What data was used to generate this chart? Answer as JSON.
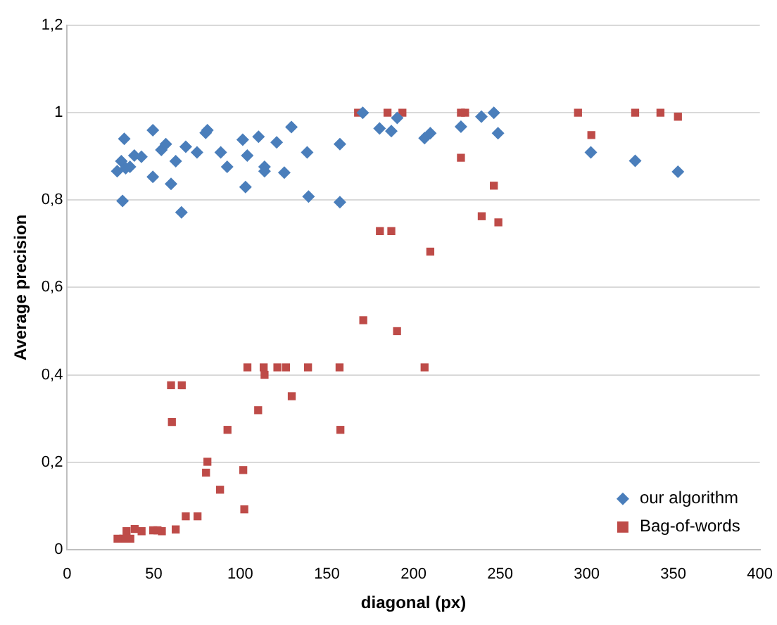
{
  "chart_data": {
    "type": "scatter",
    "xlabel": "diagonal (px)",
    "ylabel": "Average precision",
    "xlim": [
      0,
      400
    ],
    "xticks": [
      0,
      50,
      100,
      150,
      200,
      250,
      300,
      350,
      400
    ],
    "ylim": [
      0,
      1.2
    ],
    "yticks": [
      {
        "value": 0,
        "label": "0"
      },
      {
        "value": 0.2,
        "label": "0,2"
      },
      {
        "value": 0.4,
        "label": "0,4"
      },
      {
        "value": 0.6,
        "label": "0,6"
      },
      {
        "value": 0.8,
        "label": "0,8"
      },
      {
        "value": 1,
        "label": "1"
      },
      {
        "value": 1.2,
        "label": "1,2"
      }
    ],
    "grid": "y",
    "legend": "bottom right",
    "series": [
      {
        "name": "our algorithm",
        "color": "#4a7ebb",
        "marker": "diamond",
        "x": [
          28.9,
          31.3,
          33,
          32,
          33.8,
          36.3,
          38.8,
          42.9,
          49.5,
          49.5,
          54.4,
          57,
          60,
          62.7,
          66,
          68.5,
          75,
          80,
          81,
          88.7,
          92.4,
          101.4,
          103,
          104,
          110.5,
          114,
          114,
          121,
          125.4,
          129.5,
          138.6,
          139.4,
          157.5,
          157.5,
          170.7,
          180.4,
          187.2,
          190.6,
          206.4,
          209.7,
          227.4,
          239.2,
          246.4,
          248.8,
          302.4,
          328,
          352.7
        ],
        "values": [
          0.866,
          0.889,
          0.94,
          0.798,
          0.873,
          0.876,
          0.902,
          0.899,
          0.96,
          0.853,
          0.915,
          0.928,
          0.837,
          0.889,
          0.772,
          0.922,
          0.909,
          0.954,
          0.96,
          0.909,
          0.876,
          0.938,
          0.83,
          0.902,
          0.945,
          0.876,
          0.866,
          0.932,
          0.863,
          0.967,
          0.909,
          0.808,
          0.928,
          0.795,
          1.0,
          0.964,
          0.958,
          0.988,
          0.942,
          0.953,
          0.968,
          0.991,
          1.0,
          0.953,
          0.909,
          0.89,
          0.865
        ]
      },
      {
        "name": "Bag-of-words",
        "color": "#be4b48",
        "marker": "square",
        "x": [
          168,
          185,
          193.6,
          227.4,
          229.8,
          295,
          328,
          342.6,
          352.7,
          302.7,
          227.4,
          246.4,
          239.4,
          249,
          180.6,
          187.2,
          209.7,
          171,
          190.5,
          206.4,
          104.1,
          113.5,
          114,
          121.4,
          126.4,
          139.1,
          157.3,
          60,
          66.2,
          129.7,
          110.3,
          60.5,
          92.6,
          157.8,
          81,
          80.2,
          101.7,
          88.3,
          102.3,
          68.5,
          75.3,
          62.7,
          54.7,
          52.2,
          49.7,
          43,
          39,
          34.3,
          36.5,
          32.4,
          29.1
        ],
        "values": [
          1.0,
          1.0,
          1.0,
          1.0,
          1.0,
          1.0,
          1.0,
          1.0,
          0.991,
          0.949,
          0.897,
          0.833,
          0.763,
          0.749,
          0.729,
          0.729,
          0.682,
          0.525,
          0.5,
          0.417,
          0.417,
          0.417,
          0.4,
          0.417,
          0.417,
          0.417,
          0.417,
          0.376,
          0.376,
          0.351,
          0.319,
          0.292,
          0.274,
          0.274,
          0.201,
          0.176,
          0.182,
          0.137,
          0.092,
          0.076,
          0.076,
          0.046,
          0.042,
          0.044,
          0.044,
          0.042,
          0.047,
          0.042,
          0.025,
          0.025,
          0.025
        ]
      }
    ]
  }
}
